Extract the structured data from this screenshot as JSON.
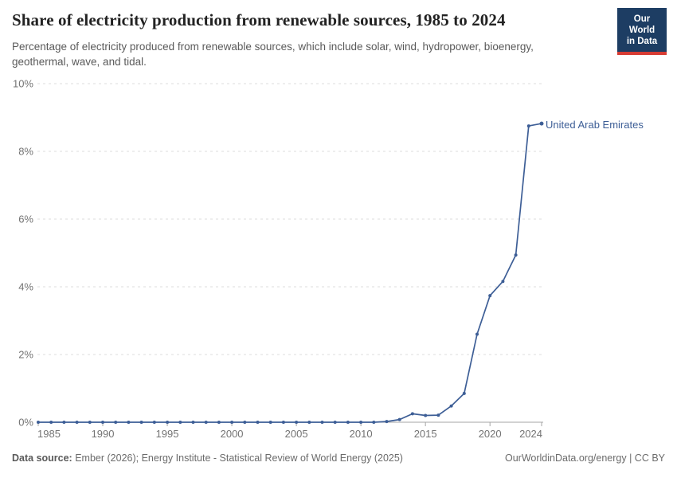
{
  "header": {
    "title": "Share of electricity production from renewable sources, 1985 to 2024",
    "subtitle": "Percentage of electricity produced from renewable sources, which include solar, wind, hydropower, bioenergy, geothermal, wave, and tidal.",
    "logo": {
      "line1": "Our World",
      "line2": "in Data"
    }
  },
  "chart_data": {
    "type": "line",
    "title": "Share of electricity production from renewable sources, 1985 to 2024",
    "xlabel": "",
    "ylabel": "",
    "xlim": [
      1985,
      2024
    ],
    "ylim": [
      0,
      10
    ],
    "grid": "horizontal-dashed",
    "legend_position": "end-of-line-label",
    "x": [
      1985,
      1986,
      1987,
      1988,
      1989,
      1990,
      1991,
      1992,
      1993,
      1994,
      1995,
      1996,
      1997,
      1998,
      1999,
      2000,
      2001,
      2002,
      2003,
      2004,
      2005,
      2006,
      2007,
      2008,
      2009,
      2010,
      2011,
      2012,
      2013,
      2014,
      2015,
      2016,
      2017,
      2018,
      2019,
      2020,
      2021,
      2022,
      2023,
      2024
    ],
    "series": [
      {
        "name": "United Arab Emirates",
        "values": [
          0,
          0,
          0,
          0,
          0,
          0,
          0,
          0,
          0,
          0,
          0,
          0,
          0,
          0,
          0,
          0,
          0,
          0,
          0,
          0,
          0,
          0,
          0,
          0,
          0,
          0,
          0,
          0.02,
          0.08,
          0.25,
          0.2,
          0.21,
          0.48,
          0.85,
          2.6,
          3.74,
          4.16,
          4.94,
          8.75,
          8.82
        ]
      }
    ],
    "x_ticks": [
      {
        "value": 1985,
        "label": "1985"
      },
      {
        "value": 1990,
        "label": "1990"
      },
      {
        "value": 1995,
        "label": "1995"
      },
      {
        "value": 2000,
        "label": "2000"
      },
      {
        "value": 2005,
        "label": "2005"
      },
      {
        "value": 2010,
        "label": "2010"
      },
      {
        "value": 2015,
        "label": "2015"
      },
      {
        "value": 2020,
        "label": "2020"
      },
      {
        "value": 2024,
        "label": "2024"
      }
    ],
    "y_ticks": [
      {
        "value": 0,
        "label": "0%"
      },
      {
        "value": 2,
        "label": "2%"
      },
      {
        "value": 4,
        "label": "4%"
      },
      {
        "value": 6,
        "label": "6%"
      },
      {
        "value": 8,
        "label": "8%"
      },
      {
        "value": 10,
        "label": "10%"
      }
    ]
  },
  "colors": {
    "line": "#3d5e96",
    "series_label": "#3d5e96",
    "grid": "#dcdcdc",
    "axis": "#a5a5a5",
    "tick_text": "#737373",
    "title_text": "#222222",
    "subtitle_text": "#5a5a5a",
    "footer_text": "#6b6b6b",
    "logo_bg": "#1d3d63",
    "logo_accent": "#d73c34"
  },
  "footer": {
    "source_label": "Data source:",
    "source_text": " Ember (2026); Energy Institute - Statistical Review of World Energy (2025)",
    "credit": "OurWorldinData.org/energy | CC BY"
  }
}
